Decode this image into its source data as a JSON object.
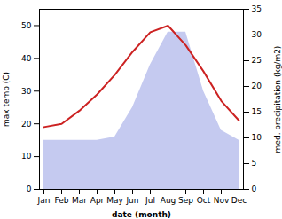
{
  "chart_data": {
    "type": "line",
    "xlabel": "date (month)",
    "ylabel": "max temp (C)",
    "y2label": "med. precipitation (kg/m2)",
    "categories": [
      "Jan",
      "Feb",
      "Mar",
      "Apr",
      "May",
      "Jun",
      "Jul",
      "Aug",
      "Sep",
      "Oct",
      "Nov",
      "Dec"
    ],
    "series": [
      {
        "type": "area",
        "color": "#c5caf0",
        "values": [
          15,
          15,
          15,
          15,
          16,
          25,
          38,
          48,
          48,
          30,
          18,
          15
        ]
      },
      {
        "type": "line",
        "color": "#cc2222",
        "values": [
          19,
          20,
          24,
          29,
          35,
          42,
          48,
          50,
          44,
          36,
          27,
          21
        ]
      }
    ],
    "ylim": [
      0,
      55
    ],
    "yticks": [
      0,
      10,
      20,
      30,
      40,
      50
    ],
    "y2lim": [
      0,
      35
    ],
    "y2ticks": [
      0,
      5,
      10,
      15,
      20,
      25,
      30,
      35
    ],
    "grid": false
  }
}
